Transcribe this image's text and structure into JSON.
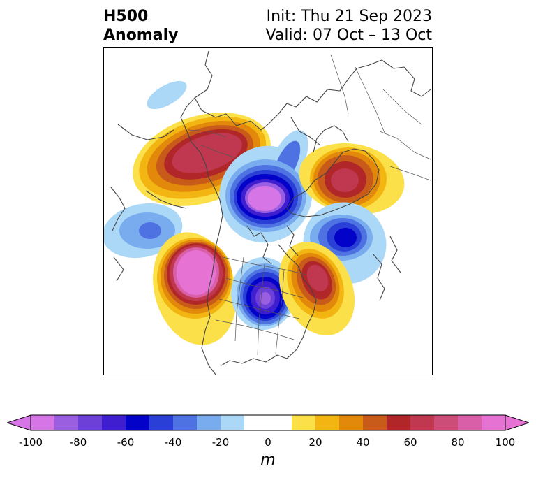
{
  "title": {
    "left_line1": "H500",
    "left_line2": "Anomaly",
    "init": "Init: Thu 21 Sep 2023",
    "valid": "Valid: 07 Oct – 13 Oct"
  },
  "map": {
    "field": "500 hPa geopotential height anomaly",
    "features": [
      {
        "name": "alaska-ridge",
        "sign": "positive"
      },
      {
        "name": "arctic-trough",
        "sign": "negative"
      },
      {
        "name": "siberia-ridge",
        "sign": "positive"
      },
      {
        "name": "north-pacific-trough",
        "sign": "negative"
      },
      {
        "name": "east-asia-trough",
        "sign": "negative"
      },
      {
        "name": "west-north-america-ridge",
        "sign": "positive"
      },
      {
        "name": "central-north-america-trough",
        "sign": "negative"
      },
      {
        "name": "atlantic-ridge",
        "sign": "positive"
      },
      {
        "name": "northeast-pacific-weak-trough",
        "sign": "negative"
      }
    ]
  },
  "colorbar": {
    "label": "m",
    "ticks": [
      "-100",
      "-80",
      "-60",
      "-40",
      "-20",
      "0",
      "20",
      "40",
      "60",
      "80",
      "100"
    ],
    "colors": [
      "#d575e6",
      "#9a5fe0",
      "#6d40d8",
      "#3f1ed0",
      "#0202c8",
      "#2a3fd6",
      "#4f72e2",
      "#78acee",
      "#acd8f8",
      "#ffffff",
      "#ffffff",
      "#fbe04a",
      "#f2b511",
      "#e2890c",
      "#c85a1a",
      "#b12628",
      "#c0384f",
      "#cc4d78",
      "#d85fa8",
      "#e673d4"
    ]
  }
}
